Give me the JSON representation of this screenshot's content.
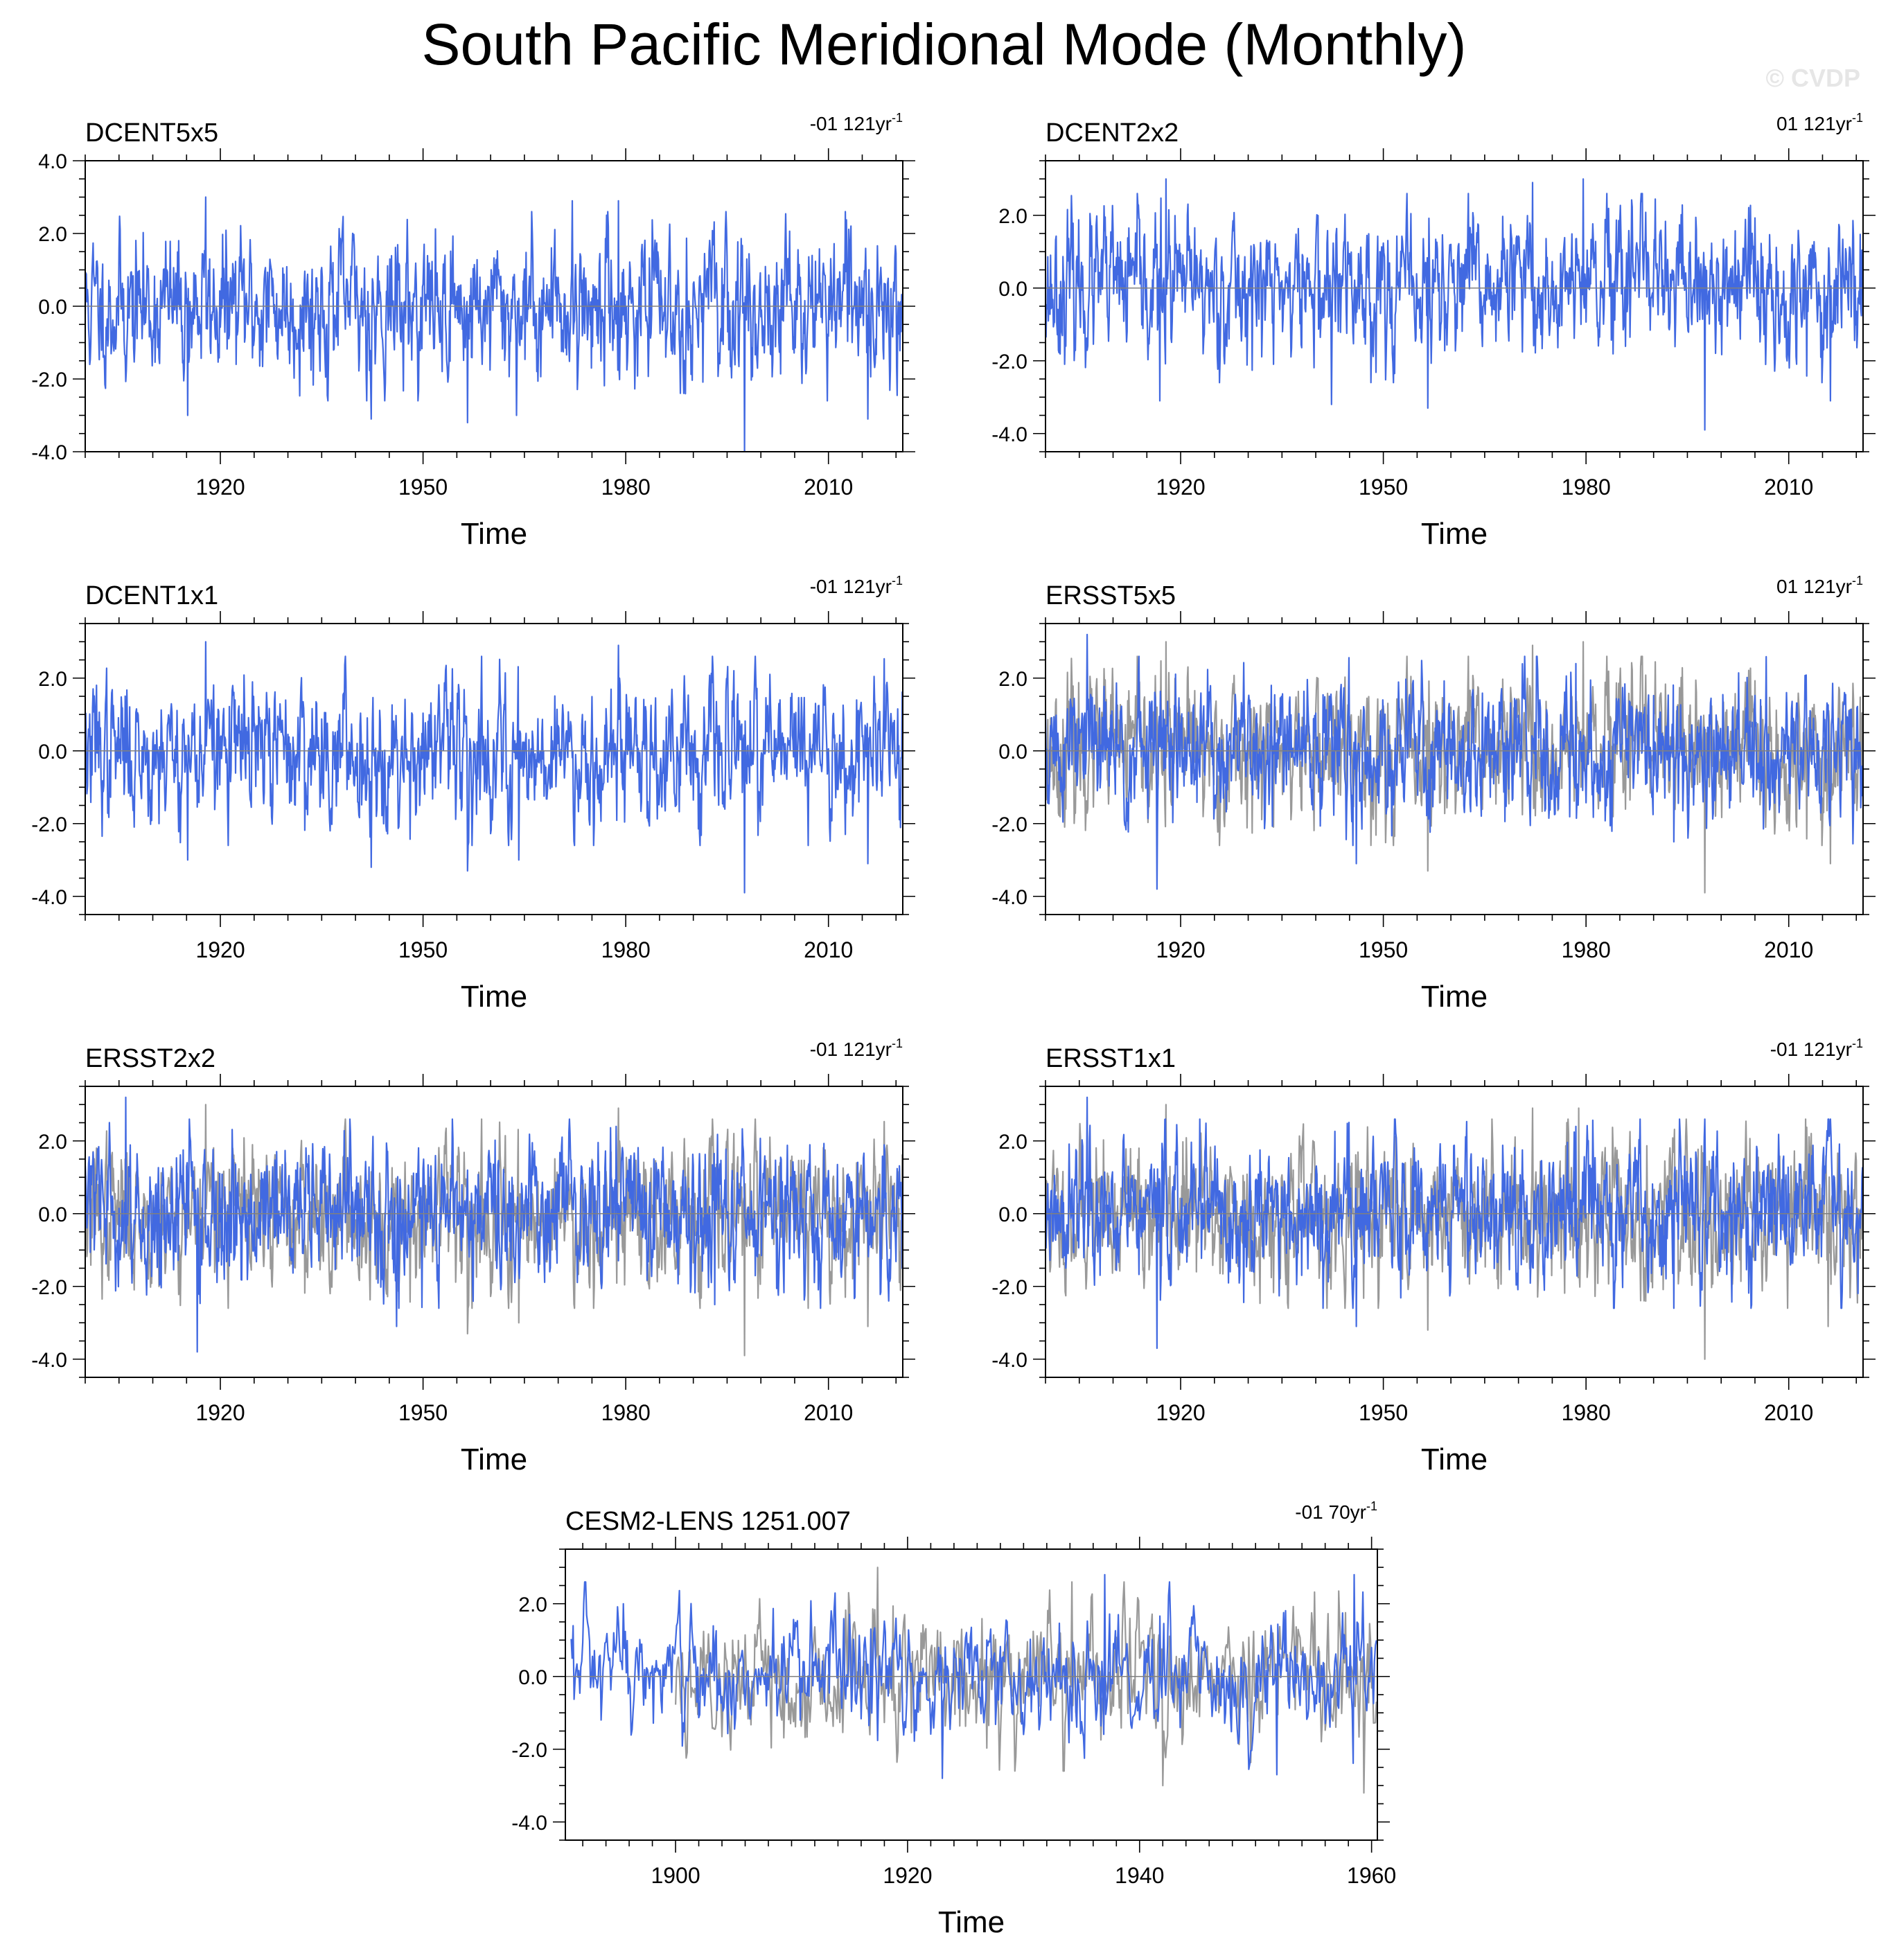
{
  "title": "South Pacific Meridional Mode (Monthly)",
  "watermark": "© CVDP",
  "colors": {
    "primary": "#4169e1",
    "reference": "#999999",
    "axis": "#000000",
    "zero_line": "#808080"
  },
  "chart_data": [
    {
      "type": "line",
      "title": "DCENT5x5",
      "trend": "-01 121yr",
      "trend_superscript": "-1",
      "xlabel": "Time",
      "ylabel": "",
      "xlim": [
        1900,
        2021
      ],
      "ylim": [
        -4.0,
        4.0
      ],
      "xticks": [
        1920,
        1950,
        1980,
        2010
      ],
      "yticks": [
        "-4.0",
        "-2.0",
        "0.0",
        "2.0",
        "4.0"
      ],
      "zero_line": true,
      "grid": false,
      "series": [
        {
          "role": "primary",
          "color": "#4169e1",
          "seed": 11,
          "start": 1900,
          "end": 2021,
          "amplitude": 0.95,
          "extremes": [
            [
              1917.8,
              3.0
            ],
            [
              1915.2,
              -3.0
            ],
            [
              1942.3,
              -3.1
            ],
            [
              1956.6,
              -3.2
            ],
            [
              1963.8,
              -3.0
            ],
            [
              1972.1,
              2.9
            ],
            [
              1978.9,
              2.9
            ],
            [
              1997.6,
              -4.0
            ],
            [
              2015.8,
              -3.1
            ]
          ]
        }
      ]
    },
    {
      "type": "line",
      "title": "DCENT2x2",
      "trend": "01 121yr",
      "trend_superscript": "-1",
      "xlabel": "Time",
      "ylabel": "",
      "xlim": [
        1900,
        2021
      ],
      "ylim": [
        -4.5,
        3.5
      ],
      "xticks": [
        1920,
        1950,
        1980,
        2010
      ],
      "yticks": [
        "-4.0",
        "-2.0",
        "0.0",
        "2.0"
      ],
      "zero_line": true,
      "grid": false,
      "series": [
        {
          "role": "primary",
          "color": "#4169e1",
          "seed": 23,
          "start": 1900,
          "end": 2021,
          "amplitude": 0.95,
          "extremes": [
            [
              1917.8,
              3.0
            ],
            [
              1916.9,
              -3.1
            ],
            [
              1942.3,
              -3.2
            ],
            [
              1956.6,
              -3.3
            ],
            [
              1972.1,
              2.9
            ],
            [
              1979.6,
              3.0
            ],
            [
              1997.6,
              -3.9
            ],
            [
              2016.2,
              -3.1
            ]
          ]
        }
      ]
    },
    {
      "type": "line",
      "title": "DCENT1x1",
      "trend": "-01 121yr",
      "trend_superscript": "-1",
      "xlabel": "Time",
      "ylabel": "",
      "xlim": [
        1900,
        2021
      ],
      "ylim": [
        -4.5,
        3.5
      ],
      "xticks": [
        1920,
        1950,
        1980,
        2010
      ],
      "yticks": [
        "-4.0",
        "-2.0",
        "0.0",
        "2.0"
      ],
      "zero_line": true,
      "grid": false,
      "series": [
        {
          "role": "primary",
          "color": "#4169e1",
          "seed": 37,
          "start": 1900,
          "end": 2021,
          "amplitude": 0.95,
          "extremes": [
            [
              1917.8,
              3.0
            ],
            [
              1915.2,
              -3.0
            ],
            [
              1942.3,
              -3.2
            ],
            [
              1956.6,
              -3.3
            ],
            [
              1964.2,
              -3.0
            ],
            [
              1978.9,
              2.9
            ],
            [
              1997.6,
              -3.9
            ],
            [
              2015.8,
              -3.1
            ]
          ]
        }
      ]
    },
    {
      "type": "line",
      "title": "ERSST5x5",
      "trend": "01 121yr",
      "trend_superscript": "-1",
      "xlabel": "Time",
      "ylabel": "",
      "xlim": [
        1900,
        2021
      ],
      "ylim": [
        -4.5,
        3.5
      ],
      "xticks": [
        1920,
        1950,
        1980,
        2010
      ],
      "yticks": [
        "-4.0",
        "-2.0",
        "0.0",
        "2.0"
      ],
      "zero_line": true,
      "grid": false,
      "series": [
        {
          "role": "reference",
          "color": "#999999",
          "seed": 23,
          "start": 1900,
          "end": 2021,
          "amplitude": 0.95,
          "extremes": [
            [
              1917.8,
              3.0
            ],
            [
              1956.6,
              -3.3
            ],
            [
              1972.1,
              2.9
            ],
            [
              1979.6,
              3.0
            ],
            [
              1997.6,
              -3.9
            ],
            [
              2016.2,
              -3.1
            ]
          ]
        },
        {
          "role": "primary",
          "color": "#4169e1",
          "seed": 51,
          "start": 1900,
          "end": 2021,
          "amplitude": 0.95,
          "extremes": [
            [
              1906.2,
              3.2
            ],
            [
              1916.5,
              -3.8
            ],
            [
              1946.0,
              -3.1
            ],
            [
              1978.5,
              2.4
            ],
            [
              1993.0,
              -2.5
            ]
          ]
        }
      ]
    },
    {
      "type": "line",
      "title": "ERSST2x2",
      "trend": "-01 121yr",
      "trend_superscript": "-1",
      "xlabel": "Time",
      "ylabel": "",
      "xlim": [
        1900,
        2021
      ],
      "ylim": [
        -4.5,
        3.5
      ],
      "xticks": [
        1920,
        1950,
        1980,
        2010
      ],
      "yticks": [
        "-4.0",
        "-2.0",
        "0.0",
        "2.0"
      ],
      "zero_line": true,
      "grid": false,
      "series": [
        {
          "role": "reference",
          "color": "#999999",
          "seed": 37,
          "start": 1900,
          "end": 2021,
          "amplitude": 0.95,
          "extremes": [
            [
              1917.8,
              3.0
            ],
            [
              1956.6,
              -3.3
            ],
            [
              1964.2,
              -3.0
            ],
            [
              1978.9,
              2.9
            ],
            [
              1997.6,
              -3.9
            ],
            [
              2015.8,
              -3.1
            ]
          ]
        },
        {
          "role": "primary",
          "color": "#4169e1",
          "seed": 63,
          "start": 1900,
          "end": 2021,
          "amplitude": 0.95,
          "extremes": [
            [
              1906.0,
              3.2
            ],
            [
              1916.6,
              -3.8
            ],
            [
              1946.1,
              -3.1
            ],
            [
              1978.6,
              2.4
            ],
            [
              1993.2,
              -2.5
            ]
          ]
        }
      ]
    },
    {
      "type": "line",
      "title": "ERSST1x1",
      "trend": "-01 121yr",
      "trend_superscript": "-1",
      "xlabel": "Time",
      "ylabel": "",
      "xlim": [
        1900,
        2021
      ],
      "ylim": [
        -4.5,
        3.5
      ],
      "xticks": [
        1920,
        1950,
        1980,
        2010
      ],
      "yticks": [
        "-4.0",
        "-2.0",
        "0.0",
        "2.0"
      ],
      "zero_line": true,
      "grid": false,
      "series": [
        {
          "role": "reference",
          "color": "#999999",
          "seed": 11,
          "start": 1900,
          "end": 2021,
          "amplitude": 0.95,
          "extremes": [
            [
              1917.8,
              3.0
            ],
            [
              1956.6,
              -3.2
            ],
            [
              1972.1,
              2.9
            ],
            [
              1978.9,
              2.9
            ],
            [
              1997.6,
              -4.0
            ],
            [
              2015.8,
              -3.1
            ]
          ]
        },
        {
          "role": "primary",
          "color": "#4169e1",
          "seed": 77,
          "start": 1900,
          "end": 2021,
          "amplitude": 0.95,
          "extremes": [
            [
              1906.2,
              3.2
            ],
            [
              1916.5,
              -3.7
            ],
            [
              1946.0,
              -3.1
            ],
            [
              1978.5,
              2.4
            ],
            [
              1993.0,
              -2.6
            ]
          ]
        }
      ]
    },
    {
      "type": "line",
      "title": "CESM2-LENS 1251.007",
      "trend": "-01 70yr",
      "trend_superscript": "-1",
      "xlabel": "Time",
      "ylabel": "",
      "xlim": [
        1890.5,
        1960.5
      ],
      "ylim": [
        -4.5,
        3.5
      ],
      "xticks": [
        1900,
        1920,
        1940,
        1960
      ],
      "yticks": [
        "-4.0",
        "-2.0",
        "0.0",
        "2.0"
      ],
      "zero_line": true,
      "grid": false,
      "series": [
        {
          "role": "reference",
          "color": "#999999",
          "seed": 89,
          "start": 1900,
          "end": 1960.5,
          "amplitude": 0.95,
          "extremes": [
            [
              1917.4,
              3.0
            ],
            [
              1934.2,
              2.6
            ],
            [
              1942.0,
              -3.0
            ],
            [
              1959.3,
              -3.2
            ]
          ]
        },
        {
          "role": "primary",
          "color": "#4169e1",
          "seed": 97,
          "start": 1891,
          "end": 1960.5,
          "amplitude": 0.85,
          "extremes": [
            [
              1895.5,
              2.0
            ],
            [
              1923.0,
              -2.8
            ],
            [
              1937.0,
              2.8
            ],
            [
              1951.8,
              -2.7
            ],
            [
              1958.5,
              2.8
            ]
          ]
        }
      ]
    }
  ]
}
